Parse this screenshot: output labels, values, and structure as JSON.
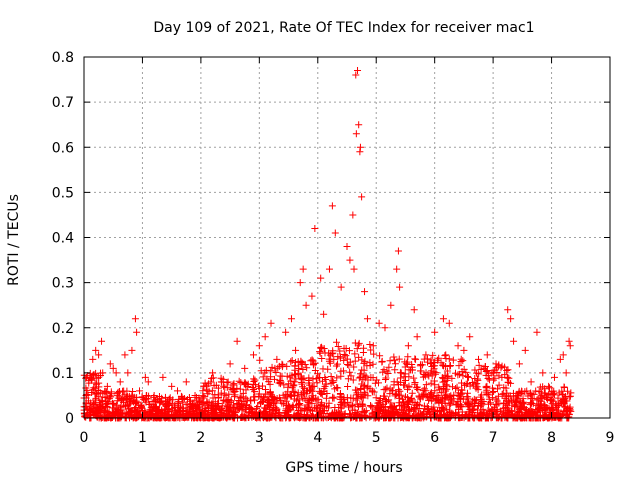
{
  "chart_data": {
    "type": "scatter",
    "title": "Day 109 of 2021, Rate Of TEC Index for receiver mac1",
    "xlabel": "GPS time / hours",
    "ylabel": "ROTI / TECUs",
    "xlim": [
      0,
      9
    ],
    "ylim": [
      0,
      0.8
    ],
    "xticks": [
      "0",
      "1",
      "2",
      "3",
      "4",
      "5",
      "6",
      "7",
      "8",
      "9"
    ],
    "yticks": [
      "0",
      "0.1",
      "0.2",
      "0.3",
      "0.4",
      "0.5",
      "0.6",
      "0.7",
      "0.8"
    ],
    "grid": true,
    "series": [
      {
        "name": "ROTI",
        "color": "#ff0000",
        "marker": "plus",
        "points": [
          [
            0.05,
            0.02
          ],
          [
            0.1,
            0.09
          ],
          [
            0.15,
            0.13
          ],
          [
            0.2,
            0.15
          ],
          [
            0.25,
            0.14
          ],
          [
            0.3,
            0.17
          ],
          [
            0.32,
            0.1
          ],
          [
            0.4,
            0.07
          ],
          [
            0.45,
            0.12
          ],
          [
            0.5,
            0.11
          ],
          [
            0.55,
            0.1
          ],
          [
            0.62,
            0.08
          ],
          [
            0.7,
            0.14
          ],
          [
            0.75,
            0.1
          ],
          [
            0.82,
            0.15
          ],
          [
            0.88,
            0.22
          ],
          [
            0.9,
            0.19
          ],
          [
            0.95,
            0.06
          ],
          [
            1.05,
            0.09
          ],
          [
            1.1,
            0.08
          ],
          [
            1.2,
            0.05
          ],
          [
            1.35,
            0.09
          ],
          [
            1.5,
            0.07
          ],
          [
            1.6,
            0.06
          ],
          [
            1.75,
            0.08
          ],
          [
            1.9,
            0.05
          ],
          [
            2.05,
            0.07
          ],
          [
            2.2,
            0.1
          ],
          [
            2.35,
            0.08
          ],
          [
            2.5,
            0.12
          ],
          [
            2.62,
            0.17
          ],
          [
            2.75,
            0.11
          ],
          [
            2.9,
            0.14
          ],
          [
            3.0,
            0.16
          ],
          [
            3.1,
            0.18
          ],
          [
            3.2,
            0.21
          ],
          [
            3.3,
            0.13
          ],
          [
            3.45,
            0.19
          ],
          [
            3.55,
            0.22
          ],
          [
            3.62,
            0.15
          ],
          [
            3.7,
            0.3
          ],
          [
            3.75,
            0.33
          ],
          [
            3.8,
            0.25
          ],
          [
            3.9,
            0.27
          ],
          [
            3.95,
            0.42
          ],
          [
            4.05,
            0.31
          ],
          [
            4.1,
            0.23
          ],
          [
            4.2,
            0.33
          ],
          [
            4.25,
            0.47
          ],
          [
            4.3,
            0.41
          ],
          [
            4.4,
            0.29
          ],
          [
            4.5,
            0.38
          ],
          [
            4.55,
            0.35
          ],
          [
            4.6,
            0.45
          ],
          [
            4.62,
            0.33
          ],
          [
            4.65,
            0.76
          ],
          [
            4.66,
            0.63
          ],
          [
            4.68,
            0.77
          ],
          [
            4.7,
            0.65
          ],
          [
            4.72,
            0.59
          ],
          [
            4.73,
            0.6
          ],
          [
            4.75,
            0.49
          ],
          [
            4.8,
            0.28
          ],
          [
            4.85,
            0.22
          ],
          [
            4.95,
            0.16
          ],
          [
            5.05,
            0.21
          ],
          [
            5.15,
            0.2
          ],
          [
            5.25,
            0.25
          ],
          [
            5.35,
            0.33
          ],
          [
            5.38,
            0.37
          ],
          [
            5.4,
            0.29
          ],
          [
            5.55,
            0.16
          ],
          [
            5.65,
            0.24
          ],
          [
            5.7,
            0.18
          ],
          [
            5.85,
            0.14
          ],
          [
            6.0,
            0.19
          ],
          [
            6.15,
            0.22
          ],
          [
            6.25,
            0.21
          ],
          [
            6.4,
            0.16
          ],
          [
            6.5,
            0.15
          ],
          [
            6.6,
            0.18
          ],
          [
            6.75,
            0.13
          ],
          [
            6.9,
            0.14
          ],
          [
            7.05,
            0.12
          ],
          [
            7.15,
            0.09
          ],
          [
            7.25,
            0.24
          ],
          [
            7.3,
            0.22
          ],
          [
            7.35,
            0.17
          ],
          [
            7.45,
            0.12
          ],
          [
            7.55,
            0.15
          ],
          [
            7.65,
            0.08
          ],
          [
            7.75,
            0.19
          ],
          [
            7.85,
            0.1
          ],
          [
            7.95,
            0.07
          ],
          [
            8.05,
            0.09
          ],
          [
            8.15,
            0.13
          ],
          [
            8.2,
            0.14
          ],
          [
            8.25,
            0.1
          ],
          [
            8.3,
            0.17
          ],
          [
            8.32,
            0.16
          ]
        ]
      }
    ]
  }
}
